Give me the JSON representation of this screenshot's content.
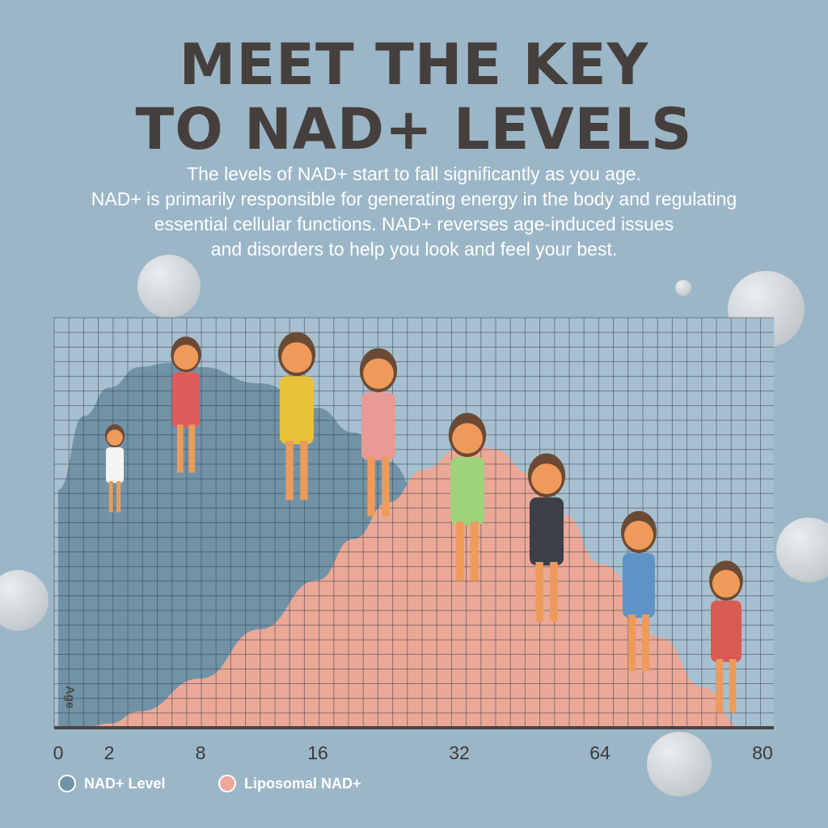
{
  "header": {
    "title_lines": [
      "MEET THE KEY",
      "TO NAD+ LEVELS"
    ],
    "subtitle_lines": [
      "The levels of NAD+ start to fall significantly as you age.",
      "NAD+ is primarily responsible for generating energy in the body and regulating",
      "essential cellular functions. NAD+ reverses age-induced issues",
      "and disorders to help you look and feel your best."
    ]
  },
  "chart_data": {
    "type": "area",
    "ylabel": "Age",
    "xlabel": "",
    "x_ticks": [
      0,
      2,
      8,
      16,
      32,
      64,
      80
    ],
    "ylim": [
      0,
      100
    ],
    "grid": true,
    "legend_position": "bottom-left",
    "series": [
      {
        "name": "NAD+ Level",
        "color": "#7193a8",
        "x": [
          0,
          1,
          2,
          4,
          6,
          8,
          12,
          16,
          20,
          24,
          28,
          32,
          40,
          48
        ],
        "values": [
          58,
          76,
          83,
          88,
          89,
          88,
          84,
          78,
          72,
          65,
          55,
          42,
          20,
          0
        ]
      },
      {
        "name": "Liposomal NAD+",
        "color": "#eba897",
        "x": [
          0,
          1,
          2,
          4,
          8,
          12,
          16,
          20,
          24,
          28,
          32,
          36,
          40,
          48,
          56,
          64,
          70,
          74,
          78
        ],
        "values": [
          0,
          0,
          1,
          4,
          12,
          24,
          36,
          46,
          55,
          63,
          68,
          69,
          68,
          62,
          52,
          40,
          22,
          10,
          0
        ]
      }
    ]
  },
  "colors": {
    "background": "#9bb6c7",
    "title": "#453f3d",
    "axis": "#4a4444"
  }
}
